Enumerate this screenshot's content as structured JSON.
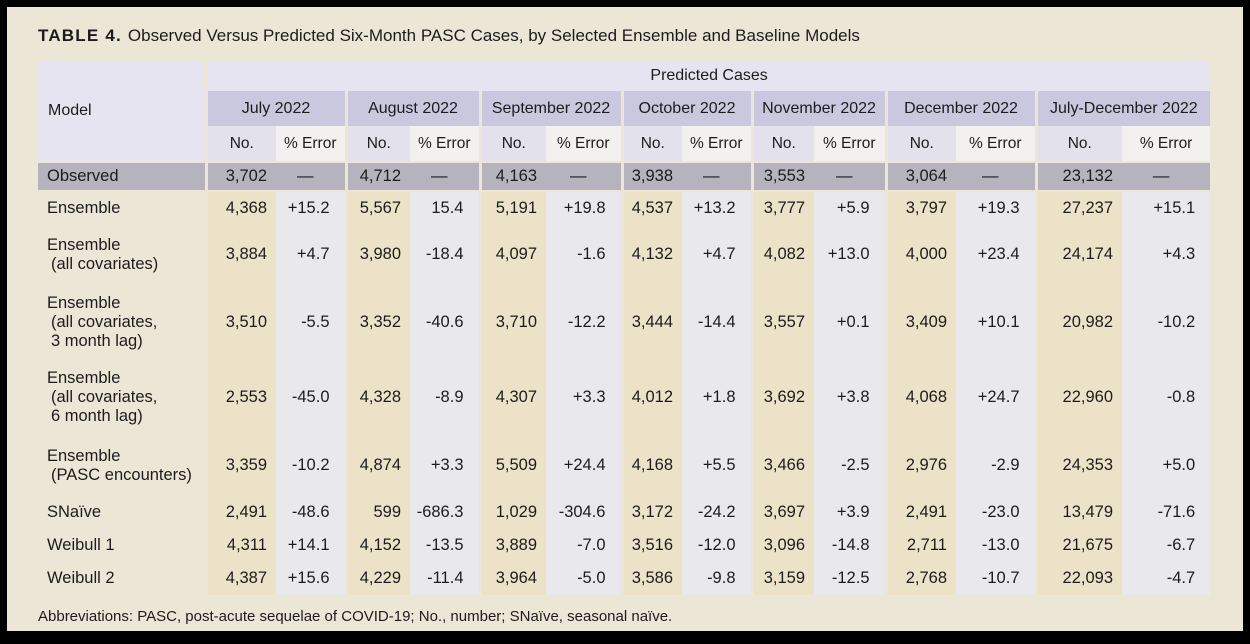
{
  "page": {
    "title_label": "TABLE 4.",
    "title_text": "Observed Versus Predicted Six-Month PASC Cases, by Selected Ensemble and Baseline Models",
    "footnote": "Abbreviations: PASC, post-acute sequelae of COVID-19; No., number; SNaïve, seasonal naïve."
  },
  "colors": {
    "page_background": "#ece6d6",
    "frame": "#000000",
    "header_lavender": "#e5e4f0",
    "month_band": "#c9c8de",
    "subheader_no": "#e2e1ec",
    "subheader_error": "#f2f1f0",
    "observed_row": "#b5b3bd",
    "number_column": "#ece2c8",
    "error_column": "#e9e9ed"
  },
  "table": {
    "model_header": "Model",
    "predicted_cases_header": "Predicted Cases",
    "months": [
      "July 2022",
      "August 2022",
      "September 2022",
      "October 2022",
      "November 2022",
      "December 2022",
      "July-December 2022"
    ],
    "subheaders": {
      "no": "No.",
      "error": "% Error"
    },
    "observed": {
      "label": "Observed",
      "values": [
        [
          "3,702",
          "—"
        ],
        [
          "4,712",
          "—"
        ],
        [
          "4,163",
          "—"
        ],
        [
          "3,938",
          "—"
        ],
        [
          "3,553",
          "—"
        ],
        [
          "3,064",
          "—"
        ],
        [
          "23,132",
          "—"
        ]
      ]
    },
    "rows": [
      {
        "label": [
          "Ensemble"
        ],
        "values": [
          [
            "4,368",
            "+15.2"
          ],
          [
            "5,567",
            "15.4"
          ],
          [
            "5,191",
            "+19.8"
          ],
          [
            "4,537",
            "+13.2"
          ],
          [
            "3,777",
            "+5.9"
          ],
          [
            "3,797",
            "+19.3"
          ],
          [
            "27,237",
            "+15.1"
          ]
        ]
      },
      {
        "label": [
          "Ensemble",
          "(all covariates)"
        ],
        "values": [
          [
            "3,884",
            "+4.7"
          ],
          [
            "3,980",
            "-18.4"
          ],
          [
            "4,097",
            "-1.6"
          ],
          [
            "4,132",
            "+4.7"
          ],
          [
            "4,082",
            "+13.0"
          ],
          [
            "4,000",
            "+23.4"
          ],
          [
            "24,174",
            "+4.3"
          ]
        ]
      },
      {
        "label": [
          "Ensemble",
          "(all covariates,",
          "3 month lag)"
        ],
        "values": [
          [
            "3,510",
            "-5.5"
          ],
          [
            "3,352",
            "-40.6"
          ],
          [
            "3,710",
            "-12.2"
          ],
          [
            "3,444",
            "-14.4"
          ],
          [
            "3,557",
            "+0.1"
          ],
          [
            "3,409",
            "+10.1"
          ],
          [
            "20,982",
            "-10.2"
          ]
        ]
      },
      {
        "label": [
          "Ensemble",
          "(all covariates,",
          "6 month lag)"
        ],
        "values": [
          [
            "2,553",
            "-45.0"
          ],
          [
            "4,328",
            "-8.9"
          ],
          [
            "4,307",
            "+3.3"
          ],
          [
            "4,012",
            "+1.8"
          ],
          [
            "3,692",
            "+3.8"
          ],
          [
            "4,068",
            "+24.7"
          ],
          [
            "22,960",
            "-0.8"
          ]
        ]
      },
      {
        "label": [
          "Ensemble",
          "(PASC encounters)"
        ],
        "values": [
          [
            "3,359",
            "-10.2"
          ],
          [
            "4,874",
            "+3.3"
          ],
          [
            "5,509",
            "+24.4"
          ],
          [
            "4,168",
            "+5.5"
          ],
          [
            "3,466",
            "-2.5"
          ],
          [
            "2,976",
            "-2.9"
          ],
          [
            "24,353",
            "+5.0"
          ]
        ]
      },
      {
        "label": [
          "SNaïve"
        ],
        "values": [
          [
            "2,491",
            "-48.6"
          ],
          [
            "599",
            "-686.3"
          ],
          [
            "1,029",
            "-304.6"
          ],
          [
            "3,172",
            "-24.2"
          ],
          [
            "3,697",
            "+3.9"
          ],
          [
            "2,491",
            "-23.0"
          ],
          [
            "13,479",
            "-71.6"
          ]
        ]
      },
      {
        "label": [
          "Weibull 1"
        ],
        "values": [
          [
            "4,311",
            "+14.1"
          ],
          [
            "4,152",
            "-13.5"
          ],
          [
            "3,889",
            "-7.0"
          ],
          [
            "3,516",
            "-12.0"
          ],
          [
            "3,096",
            "-14.8"
          ],
          [
            "2,711",
            "-13.0"
          ],
          [
            "21,675",
            "-6.7"
          ]
        ]
      },
      {
        "label": [
          "Weibull 2"
        ],
        "values": [
          [
            "4,387",
            "+15.6"
          ],
          [
            "4,229",
            "-11.4"
          ],
          [
            "3,964",
            "-5.0"
          ],
          [
            "3,586",
            "-9.8"
          ],
          [
            "3,159",
            "-12.5"
          ],
          [
            "2,768",
            "-10.7"
          ],
          [
            "22,093",
            "-4.7"
          ]
        ]
      }
    ]
  }
}
